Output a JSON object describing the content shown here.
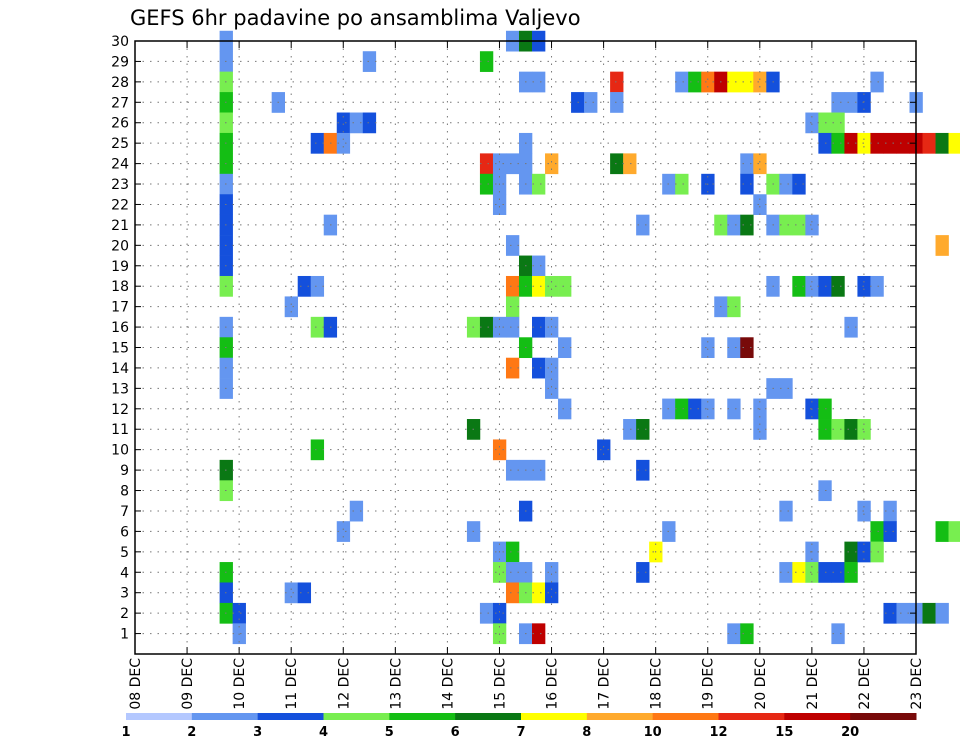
{
  "chart_data": {
    "type": "heatmap",
    "title": "GEFS 6hr padavine po ansamblima Valjevo",
    "xlabel": "",
    "ylabel": "",
    "x_ticks": [
      "08 DEC",
      "09 DEC",
      "10 DEC",
      "11 DEC",
      "12 DEC",
      "13 DEC",
      "14 DEC",
      "15 DEC",
      "16 DEC",
      "17 DEC",
      "18 DEC",
      "19 DEC",
      "20 DEC",
      "21 DEC",
      "22 DEC",
      "23 DEC"
    ],
    "y_ticks": [
      1,
      2,
      3,
      4,
      5,
      6,
      7,
      8,
      9,
      10,
      11,
      12,
      13,
      14,
      15,
      16,
      17,
      18,
      19,
      20,
      21,
      22,
      23,
      24,
      25,
      26,
      27,
      28,
      29,
      30
    ],
    "y_range": [
      0,
      30
    ],
    "x_range_days": 15,
    "grid": true,
    "legend_position": "bottom",
    "legend": {
      "colors": [
        "#b4c8ff",
        "#6496f0",
        "#1450dc",
        "#78ee50",
        "#14be14",
        "#0a7814",
        "#ffff00",
        "#ffaa2d",
        "#ff7814",
        "#e62814",
        "#be0000",
        "#780a0a"
      ],
      "labels": [
        "1",
        "2",
        "3",
        "4",
        "5",
        "6",
        "7",
        "8",
        "10",
        "12",
        "15",
        "20"
      ]
    },
    "cells": [
      [
        1.75,
        30,
        1
      ],
      [
        7.25,
        30,
        1
      ],
      [
        7.5,
        30,
        5
      ],
      [
        7.75,
        30,
        2
      ],
      [
        1.75,
        29,
        1
      ],
      [
        4.5,
        29,
        1
      ],
      [
        6.75,
        29,
        4
      ],
      [
        1.75,
        28,
        3
      ],
      [
        7.5,
        28,
        1
      ],
      [
        7.75,
        28,
        1
      ],
      [
        9.25,
        28,
        9
      ],
      [
        10.5,
        28,
        1
      ],
      [
        10.75,
        28,
        4
      ],
      [
        11,
        28,
        8
      ],
      [
        11.25,
        28,
        10
      ],
      [
        11.5,
        28,
        6
      ],
      [
        11.75,
        28,
        6
      ],
      [
        12,
        28,
        7
      ],
      [
        12.25,
        28,
        2
      ],
      [
        14.25,
        28,
        1
      ],
      [
        1.75,
        27,
        4
      ],
      [
        2.75,
        27,
        1
      ],
      [
        8.5,
        27,
        2
      ],
      [
        8.75,
        27,
        1
      ],
      [
        9.25,
        27,
        1
      ],
      [
        13.5,
        27,
        1
      ],
      [
        13.75,
        27,
        1
      ],
      [
        14,
        27,
        2
      ],
      [
        15,
        27,
        1
      ],
      [
        1.75,
        26,
        3
      ],
      [
        4,
        26,
        2
      ],
      [
        4.25,
        26,
        1
      ],
      [
        4.5,
        26,
        2
      ],
      [
        13,
        26,
        1
      ],
      [
        13.25,
        26,
        3
      ],
      [
        13.5,
        26,
        3
      ],
      [
        1.75,
        25,
        4
      ],
      [
        3.5,
        25,
        2
      ],
      [
        3.75,
        25,
        8
      ],
      [
        4,
        25,
        1
      ],
      [
        7.5,
        25,
        1
      ],
      [
        13.25,
        25,
        2
      ],
      [
        13.5,
        25,
        4
      ],
      [
        13.75,
        25,
        10
      ],
      [
        14,
        25,
        6
      ],
      [
        14.25,
        25,
        10
      ],
      [
        14.5,
        25,
        10
      ],
      [
        14.75,
        25,
        10
      ],
      [
        15,
        25,
        10
      ],
      [
        15.25,
        25,
        9
      ],
      [
        15.5,
        25,
        5
      ],
      [
        15.75,
        25,
        6
      ],
      [
        16,
        25,
        2
      ],
      [
        1.75,
        24,
        4
      ],
      [
        7.5,
        24,
        1
      ],
      [
        8,
        24,
        7
      ],
      [
        6.75,
        24,
        9
      ],
      [
        7,
        24,
        1
      ],
      [
        7.25,
        24,
        1
      ],
      [
        9.25,
        24,
        5
      ],
      [
        9.5,
        24,
        7
      ],
      [
        11.75,
        24,
        1
      ],
      [
        12,
        24,
        7
      ],
      [
        1.75,
        23,
        1
      ],
      [
        6.75,
        23,
        4
      ],
      [
        7,
        23,
        1
      ],
      [
        7.5,
        23,
        1
      ],
      [
        7.75,
        23,
        3
      ],
      [
        10.25,
        23,
        1
      ],
      [
        10.5,
        23,
        3
      ],
      [
        11,
        23,
        2
      ],
      [
        11.75,
        23,
        2
      ],
      [
        12.25,
        23,
        3
      ],
      [
        12.5,
        23,
        1
      ],
      [
        12.75,
        23,
        2
      ],
      [
        1.75,
        22,
        2
      ],
      [
        7,
        22,
        1
      ],
      [
        12,
        22,
        1
      ],
      [
        1.75,
        21,
        2
      ],
      [
        3.75,
        21,
        1
      ],
      [
        9.75,
        21,
        1
      ],
      [
        11.25,
        21,
        3
      ],
      [
        11.5,
        21,
        1
      ],
      [
        11.75,
        21,
        5
      ],
      [
        12.25,
        21,
        1
      ],
      [
        12.5,
        21,
        3
      ],
      [
        12.75,
        21,
        3
      ],
      [
        13,
        21,
        1
      ],
      [
        1.75,
        20,
        2
      ],
      [
        7.25,
        20,
        1
      ],
      [
        15.5,
        20,
        7
      ],
      [
        1.75,
        19,
        2
      ],
      [
        7.5,
        19,
        5
      ],
      [
        7.75,
        19,
        1
      ],
      [
        1.75,
        18,
        3
      ],
      [
        3.25,
        18,
        2
      ],
      [
        3.5,
        18,
        1
      ],
      [
        7.25,
        18,
        8
      ],
      [
        7.5,
        18,
        4
      ],
      [
        7.75,
        18,
        6
      ],
      [
        8,
        18,
        3
      ],
      [
        8.25,
        18,
        3
      ],
      [
        12.25,
        18,
        1
      ],
      [
        12.75,
        18,
        4
      ],
      [
        13,
        18,
        1
      ],
      [
        13.25,
        18,
        2
      ],
      [
        13.5,
        18,
        5
      ],
      [
        14,
        18,
        2
      ],
      [
        14.25,
        18,
        1
      ],
      [
        3,
        17,
        1
      ],
      [
        7.25,
        17,
        3
      ],
      [
        11.25,
        17,
        1
      ],
      [
        11.5,
        17,
        3
      ],
      [
        1.75,
        16,
        1
      ],
      [
        3.5,
        16,
        3
      ],
      [
        3.75,
        16,
        2
      ],
      [
        6.5,
        16,
        3
      ],
      [
        6.75,
        16,
        5
      ],
      [
        7,
        16,
        1
      ],
      [
        7.25,
        16,
        1
      ],
      [
        7.75,
        16,
        2
      ],
      [
        8,
        16,
        1
      ],
      [
        13.75,
        16,
        1
      ],
      [
        1.75,
        15,
        4
      ],
      [
        7.5,
        15,
        4
      ],
      [
        8.25,
        15,
        1
      ],
      [
        11,
        15,
        1
      ],
      [
        11.5,
        15,
        1
      ],
      [
        11.75,
        15,
        11
      ],
      [
        1.75,
        14,
        1
      ],
      [
        7.25,
        14,
        8
      ],
      [
        7.75,
        14,
        2
      ],
      [
        8,
        14,
        1
      ],
      [
        1.75,
        13,
        1
      ],
      [
        8,
        13,
        1
      ],
      [
        12.25,
        13,
        1
      ],
      [
        12.5,
        13,
        1
      ],
      [
        8.25,
        12,
        1
      ],
      [
        10.25,
        12,
        1
      ],
      [
        10.5,
        12,
        4
      ],
      [
        10.75,
        12,
        2
      ],
      [
        11,
        12,
        1
      ],
      [
        11.5,
        12,
        1
      ],
      [
        12,
        12,
        1
      ],
      [
        13,
        12,
        2
      ],
      [
        13.25,
        12,
        4
      ],
      [
        6.5,
        11,
        5
      ],
      [
        9.5,
        11,
        1
      ],
      [
        9.75,
        11,
        5
      ],
      [
        12,
        11,
        1
      ],
      [
        13.25,
        11,
        4
      ],
      [
        13.5,
        11,
        3
      ],
      [
        13.75,
        11,
        5
      ],
      [
        14,
        11,
        3
      ],
      [
        3.5,
        10,
        4
      ],
      [
        7,
        10,
        8
      ],
      [
        9,
        10,
        2
      ],
      [
        1.75,
        9,
        5
      ],
      [
        7.25,
        9,
        1
      ],
      [
        7.5,
        9,
        1
      ],
      [
        7.75,
        9,
        1
      ],
      [
        9.75,
        9,
        2
      ],
      [
        1.75,
        8,
        3
      ],
      [
        13.25,
        8,
        1
      ],
      [
        4.25,
        7,
        1
      ],
      [
        7.5,
        7,
        2
      ],
      [
        12.5,
        7,
        1
      ],
      [
        14,
        7,
        1
      ],
      [
        14.5,
        7,
        1
      ],
      [
        4,
        6,
        1
      ],
      [
        6.5,
        6,
        1
      ],
      [
        10.25,
        6,
        1
      ],
      [
        14.25,
        6,
        4
      ],
      [
        14.5,
        6,
        2
      ],
      [
        15.5,
        6,
        4
      ],
      [
        15.75,
        6,
        3
      ],
      [
        7,
        5,
        1
      ],
      [
        7.25,
        5,
        4
      ],
      [
        10,
        5,
        6
      ],
      [
        13,
        5,
        1
      ],
      [
        13.75,
        5,
        5
      ],
      [
        14,
        5,
        2
      ],
      [
        14.25,
        5,
        3
      ],
      [
        1.75,
        4,
        4
      ],
      [
        7,
        4,
        3
      ],
      [
        7.25,
        4,
        1
      ],
      [
        7.5,
        4,
        1
      ],
      [
        8,
        4,
        1
      ],
      [
        9.75,
        4,
        2
      ],
      [
        12.5,
        4,
        1
      ],
      [
        12.75,
        4,
        6
      ],
      [
        13,
        4,
        3
      ],
      [
        13.25,
        4,
        2
      ],
      [
        13.5,
        4,
        2
      ],
      [
        13.75,
        4,
        4
      ],
      [
        1.75,
        3,
        2
      ],
      [
        3,
        3,
        1
      ],
      [
        3.25,
        3,
        2
      ],
      [
        7.25,
        3,
        8
      ],
      [
        7.5,
        3,
        3
      ],
      [
        7.75,
        3,
        6
      ],
      [
        8,
        3,
        2
      ],
      [
        1.75,
        2,
        4
      ],
      [
        2,
        2,
        2
      ],
      [
        6.75,
        2,
        1
      ],
      [
        7,
        2,
        2
      ],
      [
        14.5,
        2,
        2
      ],
      [
        14.75,
        2,
        1
      ],
      [
        15,
        2,
        1
      ],
      [
        15.25,
        2,
        5
      ],
      [
        15.5,
        2,
        1
      ],
      [
        2,
        1,
        1
      ],
      [
        7,
        1,
        3
      ],
      [
        7.5,
        1,
        1
      ],
      [
        7.75,
        1,
        10
      ],
      [
        11.5,
        1,
        1
      ],
      [
        11.75,
        1,
        4
      ],
      [
        13.5,
        1,
        1
      ]
    ]
  }
}
